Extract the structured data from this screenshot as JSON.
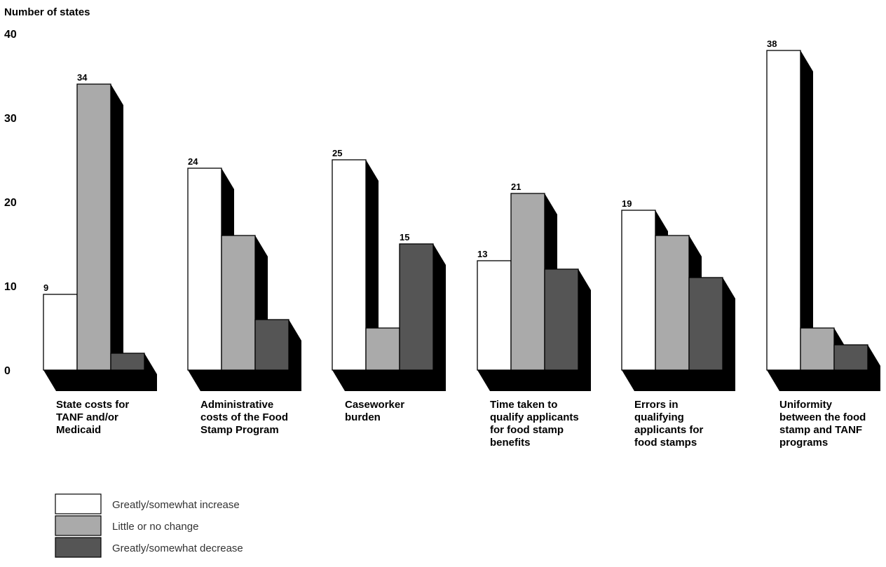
{
  "chart_data": {
    "type": "bar",
    "ylabel": "Number of states",
    "ylim": [
      0,
      40
    ],
    "yticks": [
      "0",
      "10",
      "20",
      "30",
      "40"
    ],
    "categories": [
      "State costs for TANF and/or Medicaid",
      "Administrative costs of the Food Stamp Program",
      "Caseworker burden",
      "Time taken to qualify applicants for food stamp benefits",
      "Errors in qualifying applicants for food stamps",
      "Uniformity between the food stamp and TANF programs"
    ],
    "category_lines": [
      [
        "State costs for",
        "TANF and/or",
        "Medicaid"
      ],
      [
        "Administrative",
        "costs of the Food",
        "Stamp Program"
      ],
      [
        "Caseworker",
        "burden"
      ],
      [
        "Time taken to",
        "qualify applicants",
        "for food stamp",
        "benefits"
      ],
      [
        "Errors in",
        "qualifying",
        "applicants for",
        "food stamps"
      ],
      [
        "Uniformity",
        "between the food",
        "stamp and TANF",
        "programs"
      ]
    ],
    "series": [
      {
        "name": "Greatly/somewhat increase",
        "color": "#ffffff",
        "values": [
          9,
          24,
          25,
          13,
          19,
          38
        ]
      },
      {
        "name": "Little or no change",
        "color": "#aaaaaa",
        "values": [
          34,
          16,
          5,
          21,
          16,
          5
        ]
      },
      {
        "name": "Greatly/somewhat decrease",
        "color": "#555555",
        "values": [
          2,
          6,
          15,
          12,
          11,
          3
        ]
      }
    ],
    "legend_position": "bottom-left",
    "grid": false
  }
}
